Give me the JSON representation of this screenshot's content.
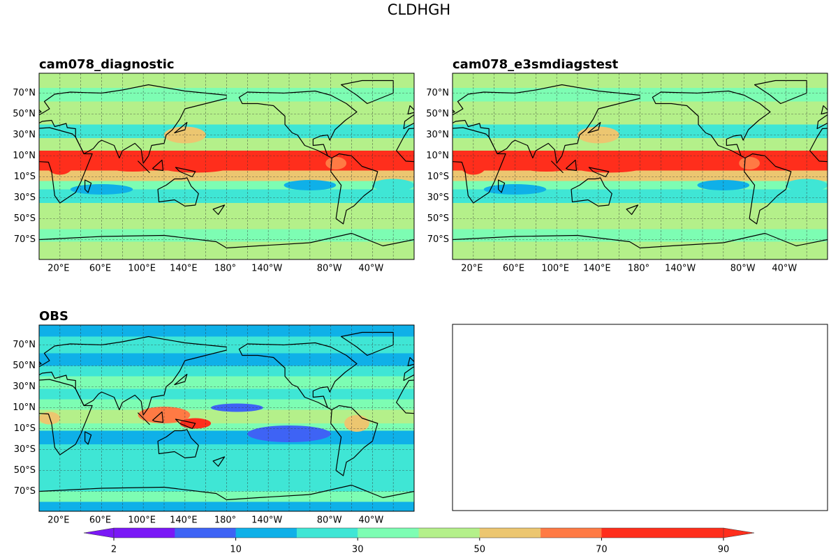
{
  "title": "CLDHGH",
  "panels": [
    {
      "title": "cam078_diagnostic"
    },
    {
      "title": "cam078_e3smdiagstest"
    },
    {
      "title": "OBS"
    }
  ],
  "lat_ticks": [
    "70°N",
    "50°N",
    "30°N",
    "10°N",
    "10°S",
    "30°S",
    "50°S",
    "70°S"
  ],
  "lon_ticks": [
    "20°E",
    "60°E",
    "100°E",
    "140°E",
    "180°",
    "140°W",
    "80°W",
    "40°W"
  ],
  "colorbar": {
    "levels": [
      2,
      5,
      10,
      20,
      30,
      40,
      50,
      60,
      70,
      80,
      90
    ],
    "colors": [
      "#7a18f6",
      "#3e63f5",
      "#0fb0e8",
      "#3fe6d5",
      "#7dfdb3",
      "#b4f08a",
      "#ecc670",
      "#ff7a44",
      "#ff2e1c",
      "#ff2e1c"
    ],
    "ticks": [
      2,
      10,
      30,
      50,
      70,
      90
    ]
  }
}
